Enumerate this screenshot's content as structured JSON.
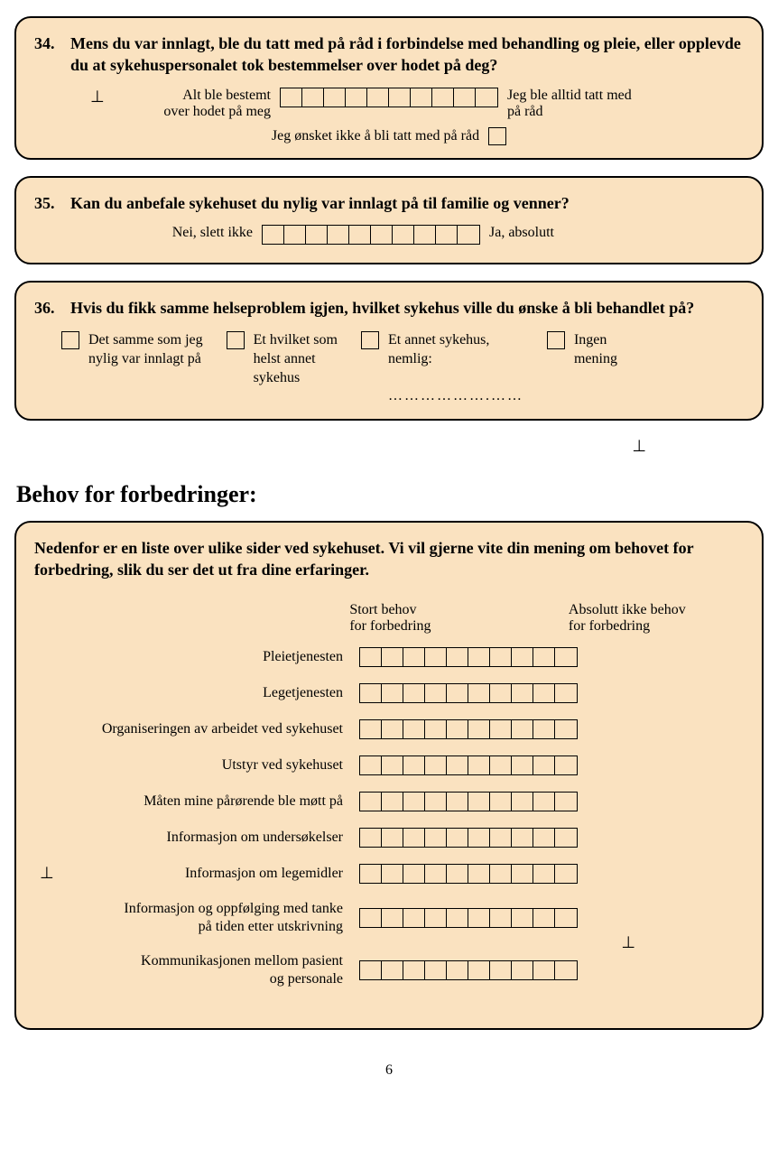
{
  "colors": {
    "box_bg": "#fae2c0",
    "border": "#000000",
    "page_bg": "#ffffff",
    "text": "#000000"
  },
  "scale": {
    "cells": 10
  },
  "q34": {
    "number": "34.",
    "text": "Mens du var innlagt, ble du tatt med på råd i forbindelse med behandling og pleie, eller opplevde du at sykehuspersonalet tok bestemmelser over hodet på deg?",
    "left1": "Alt ble bestemt",
    "left2": "over hodet på meg",
    "right1": "Jeg ble alltid tatt med",
    "right2": "på råd",
    "opt_out": "Jeg ønsket ikke  å bli tatt med på råd",
    "perp": "⊥"
  },
  "q35": {
    "number": "35.",
    "text": "Kan du anbefale sykehuset du nylig var innlagt på til familie og venner?",
    "left": "Nei, slett ikke",
    "right": "Ja, absolutt"
  },
  "q36": {
    "number": "36.",
    "text": "Hvis du fikk samme helseproblem igjen, hvilket sykehus ville du ønske å bli behandlet på?",
    "opt1a": "Det samme som jeg",
    "opt1b": "nylig var innlagt på",
    "opt2a": "Et hvilket som",
    "opt2b": "helst annet",
    "opt2c": "sykehus",
    "opt3a": "Et annet sykehus,",
    "opt3b": "nemlig:",
    "opt3_line": "……………….……",
    "opt4a": "Ingen",
    "opt4b": "mening"
  },
  "section_perp": "⊥",
  "section_title": "Behov for forbedringer:",
  "matrix": {
    "intro": "Nedenfor er en liste over ulike sider ved sykehuset. Vi vil gjerne vite din mening om behovet for forbedring, slik du ser det ut fra dine erfaringer.",
    "header_left1": "Stort behov",
    "header_left2": "for forbedring",
    "header_right1": "Absolutt ikke behov",
    "header_right2": "for forbedring",
    "rows": [
      {
        "label": "Pleietjenesten"
      },
      {
        "label": "Legetjenesten"
      },
      {
        "label": "Organiseringen av arbeidet ved sykehuset"
      },
      {
        "label": "Utstyr ved sykehuset"
      },
      {
        "label": "Måten mine pårørende ble møtt på"
      },
      {
        "label": "Informasjon om undersøkelser"
      },
      {
        "label": "Informasjon om legemidler",
        "left_perp": "⊥"
      },
      {
        "label1": "Informasjon og oppfølging med tanke",
        "label2": "på tiden etter utskrivning",
        "right_perp": "⊥"
      },
      {
        "label1": "Kommunikasjonen mellom pasient",
        "label2": "og personale"
      }
    ]
  },
  "page_number": "6"
}
